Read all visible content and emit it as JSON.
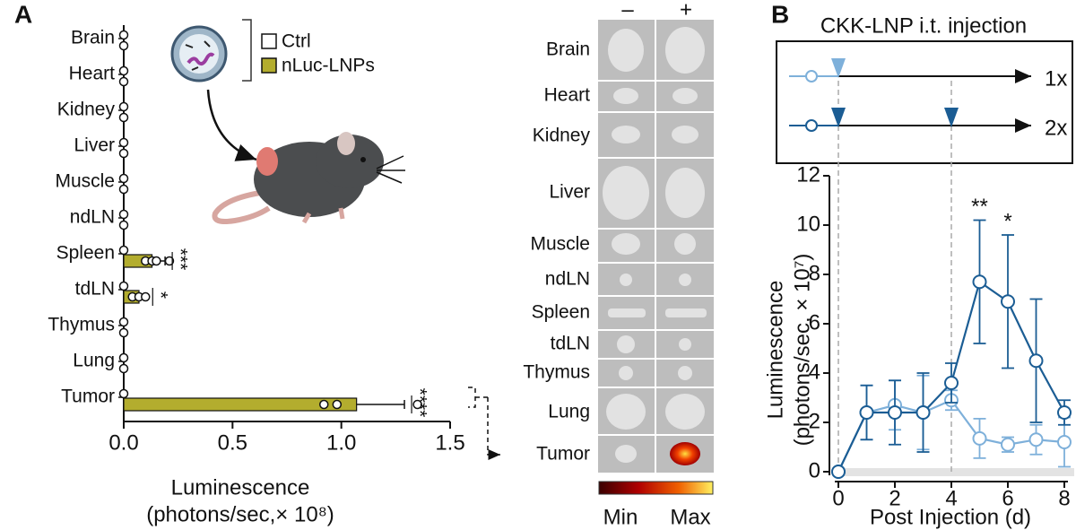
{
  "panels": {
    "a": "A",
    "b": "B"
  },
  "imaging": {
    "columns": [
      "–",
      "+"
    ],
    "scale_min": "Min",
    "scale_max": "Max"
  },
  "chart_data": [
    {
      "type": "bar",
      "orientation": "horizontal",
      "categories": [
        "Brain",
        "Heart",
        "Kidney",
        "Liver",
        "Muscle",
        "ndLN",
        "Spleen",
        "tdLN",
        "Thymus",
        "Lung",
        "Tumor"
      ],
      "series": [
        {
          "name": "Ctrl",
          "color": "#ffffff",
          "values": [
            0,
            0,
            0,
            0,
            0,
            0,
            0,
            0,
            0,
            0,
            0
          ]
        },
        {
          "name": "nLuc-LNPs",
          "color": "#b3ad2e",
          "values": [
            0,
            0,
            0,
            0,
            0,
            0,
            0.13,
            0.07,
            0,
            0,
            1.07
          ],
          "errors": [
            0,
            0,
            0,
            0,
            0,
            0,
            0.06,
            0.03,
            0,
            0,
            0.22
          ],
          "points": [
            [
              0
            ],
            [
              0
            ],
            [
              0
            ],
            [
              0
            ],
            [
              0
            ],
            [
              0
            ],
            [
              0.1,
              0.13,
              0.15,
              0.21
            ],
            [
              0.04,
              0.07,
              0.1
            ],
            [
              0
            ],
            [
              0
            ],
            [
              0.92,
              0.98,
              1.35
            ]
          ]
        }
      ],
      "significance": [
        null,
        null,
        null,
        null,
        null,
        null,
        "***",
        "*",
        null,
        null,
        "****"
      ],
      "xlabel": [
        "Luminescence",
        "(photons/sec,× 10⁸)"
      ],
      "xlim": [
        0,
        1.5
      ],
      "xticks": [
        {
          "value": 0,
          "label": "0.0"
        },
        0.5,
        {
          "value": 1,
          "label": "1.0"
        },
        1.5
      ]
    },
    {
      "type": "line",
      "title": "CKK-LNP i.t. injection",
      "x": [
        0,
        1,
        2,
        3,
        4,
        5,
        6,
        7,
        8
      ],
      "series": [
        {
          "name": "1x",
          "color": "#7eb0da",
          "injection_days": [
            0
          ],
          "values": [
            0,
            2.4,
            2.7,
            2.4,
            2.9,
            1.35,
            1.1,
            1.3,
            1.2
          ],
          "errors": [
            0,
            1.1,
            1.0,
            1.5,
            0.4,
            0.8,
            0.3,
            0.6,
            1.0
          ]
        },
        {
          "name": "2x",
          "color": "#1b5d94",
          "injection_days": [
            0,
            4
          ],
          "values": [
            0,
            2.4,
            2.4,
            2.4,
            3.6,
            7.7,
            6.9,
            4.5,
            2.4
          ],
          "errors": [
            0,
            1.1,
            1.3,
            1.6,
            0.8,
            2.5,
            2.7,
            2.5,
            0.5
          ],
          "significance": [
            null,
            null,
            null,
            null,
            null,
            "**",
            "*",
            null,
            null
          ]
        }
      ],
      "xlabel": "Post Injection (d)",
      "ylabel": [
        "Luminescence",
        "(photons/sec, × 10⁷)"
      ],
      "xlim": [
        0,
        8
      ],
      "xticks": [
        0,
        2,
        4,
        6,
        8
      ],
      "ylim": [
        0,
        12
      ],
      "yticks": [
        0,
        2,
        4,
        6,
        8,
        10,
        12
      ]
    }
  ]
}
